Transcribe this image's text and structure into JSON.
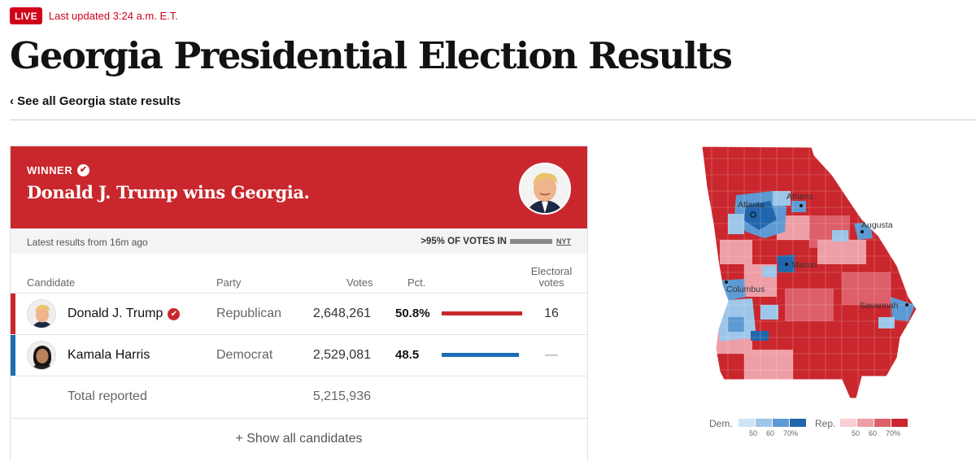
{
  "live_badge": "LIVE",
  "updated": "Last updated 3:24 a.m. E.T.",
  "title": "Georgia Presidential Election Results",
  "back_link": "‹ See all Georgia state results",
  "winner": {
    "label": "WINNER",
    "check_icon": "✔",
    "headline": "Donald J. Trump wins Georgia."
  },
  "status": {
    "latest": "Latest results from 16m ago",
    "reporting": ">95% OF VOTES IN",
    "source": "NYT"
  },
  "table": {
    "headers": {
      "candidate": "Candidate",
      "party": "Party",
      "votes": "Votes",
      "pct": "Pct.",
      "ev_line1": "Electoral",
      "ev_line2": "votes"
    },
    "rows": [
      {
        "name": "Donald J. Trump",
        "party": "Republican",
        "votes": "2,648,261",
        "pct": "50.8%",
        "ev": "16",
        "color": "#c9272d",
        "bar_fraction": 0.508,
        "winner": true
      },
      {
        "name": "Kamala Harris",
        "party": "Democrat",
        "votes": "2,529,081",
        "pct": "48.5",
        "ev": "—",
        "color": "#1c6db3",
        "bar_fraction": 0.485,
        "winner": false
      }
    ],
    "total_label": "Total reported",
    "total_votes": "5,215,936",
    "show_all": "+ Show all candidates"
  },
  "map": {
    "cities": [
      "Atlanta",
      "Athens",
      "Augusta",
      "Macon",
      "Columbus",
      "Savannah"
    ],
    "legend": {
      "dem_label": "Dem.",
      "rep_label": "Rep.",
      "dem_colors": [
        "#cfe3f5",
        "#9ec6e8",
        "#5d9ad3",
        "#2166ac"
      ],
      "rep_colors": [
        "#f7cfd3",
        "#ee9ea6",
        "#dd5f69",
        "#c9272d"
      ],
      "ticks": [
        "50",
        "60",
        "70%"
      ]
    }
  }
}
